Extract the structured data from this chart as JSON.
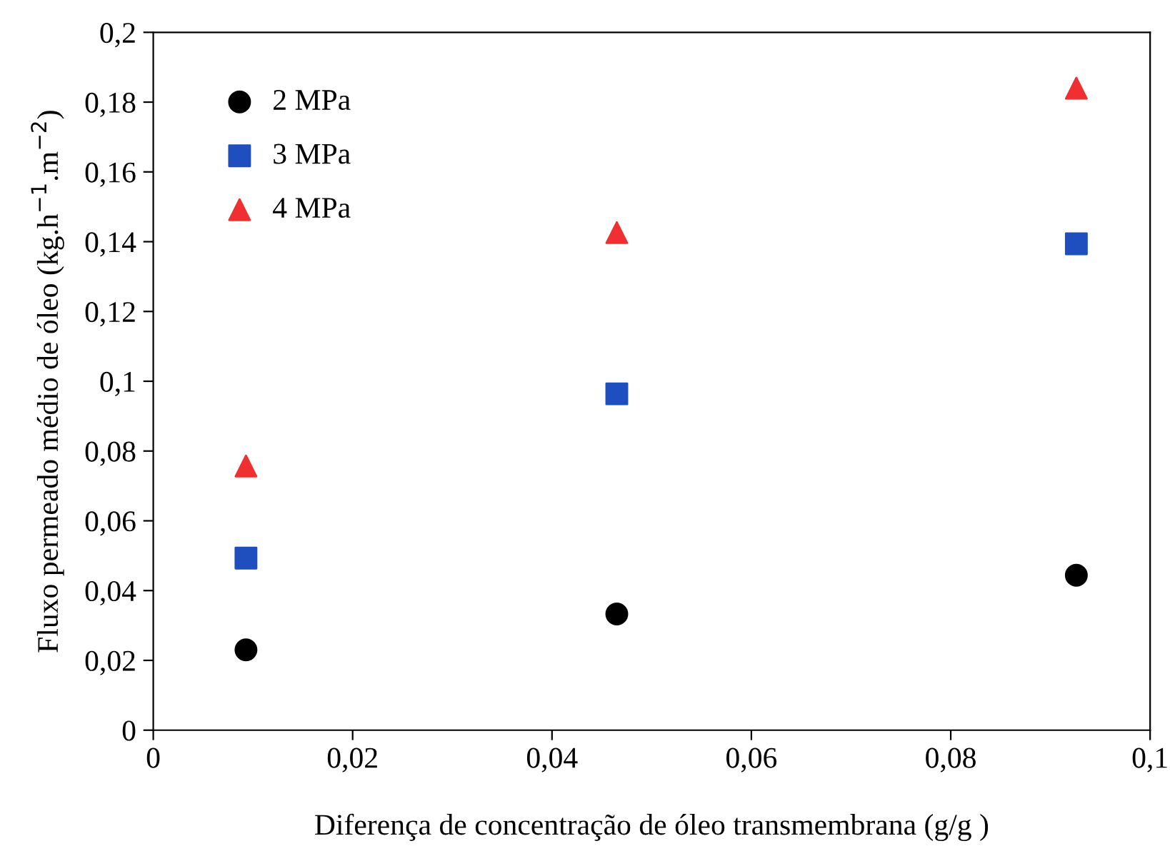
{
  "chart_data": {
    "type": "scatter",
    "xlabel": "Diferença de concentração de óleo transmembrana (g/g )",
    "ylabel": "Fluxo permeado médio de óleo (kg.h$^{−1}$.m$^{−2}$)",
    "x": [
      0.0093,
      0.0465,
      0.0926
    ],
    "series": [
      {
        "name": "2 MPa",
        "color": "#000000",
        "marker": "circle",
        "values": [
          0.023,
          0.0333,
          0.0444
        ]
      },
      {
        "name": "3 MPa",
        "color": "#1f4fbf",
        "marker": "square",
        "values": [
          0.0493,
          0.0964,
          0.1394
        ]
      },
      {
        "name": "4 MPa",
        "color": "#f03030",
        "marker": "triangle",
        "values": [
          0.0757,
          0.1426,
          0.184
        ]
      }
    ],
    "xlim": [
      0,
      0.1
    ],
    "xticks": [
      {
        "value": 0,
        "label": "0"
      },
      {
        "value": 0.02,
        "label": "0,02"
      },
      {
        "value": 0.04,
        "label": "0,04"
      },
      {
        "value": 0.06,
        "label": "0,06"
      },
      {
        "value": 0.08,
        "label": "0,08"
      },
      {
        "value": 0.1,
        "label": "0,1"
      }
    ],
    "ylim": [
      0,
      0.2
    ],
    "yticks": [
      {
        "value": 0,
        "label": "0"
      },
      {
        "value": 0.02,
        "label": "0,02"
      },
      {
        "value": 0.04,
        "label": "0,04"
      },
      {
        "value": 0.06,
        "label": "0,06"
      },
      {
        "value": 0.08,
        "label": "0,08"
      },
      {
        "value": 0.1,
        "label": "0,1"
      },
      {
        "value": 0.12,
        "label": "0,12"
      },
      {
        "value": 0.14,
        "label": "0,14"
      },
      {
        "value": 0.16,
        "label": "0,16"
      },
      {
        "value": 0.18,
        "label": "0,18"
      },
      {
        "value": 0.2,
        "label": "0,2"
      }
    ],
    "grid": false,
    "legend": "top left"
  }
}
